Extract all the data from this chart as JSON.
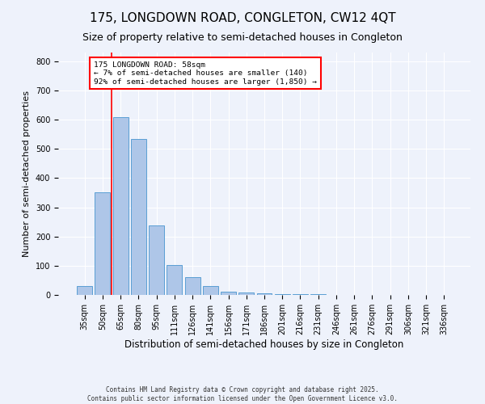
{
  "title1": "175, LONGDOWN ROAD, CONGLETON, CW12 4QT",
  "title2": "Size of property relative to semi-detached houses in Congleton",
  "xlabel": "Distribution of semi-detached houses by size in Congleton",
  "ylabel": "Number of semi-detached properties",
  "categories": [
    "35sqm",
    "50sqm",
    "65sqm",
    "80sqm",
    "95sqm",
    "111sqm",
    "126sqm",
    "141sqm",
    "156sqm",
    "171sqm",
    "186sqm",
    "201sqm",
    "216sqm",
    "231sqm",
    "246sqm",
    "261sqm",
    "276sqm",
    "291sqm",
    "306sqm",
    "321sqm",
    "336sqm"
  ],
  "values": [
    30,
    350,
    608,
    535,
    237,
    101,
    60,
    30,
    10,
    8,
    5,
    3,
    2,
    2,
    1,
    1,
    1,
    1,
    1,
    1,
    1
  ],
  "bar_color": "#aec6e8",
  "bar_edge_color": "#5a9fd4",
  "marker_color": "red",
  "annotation_title": "175 LONGDOWN ROAD: 58sqm",
  "annotation_line1": "← 7% of semi-detached houses are smaller (140)",
  "annotation_line2": "92% of semi-detached houses are larger (1,850) →",
  "annotation_box_color": "white",
  "annotation_box_edge": "red",
  "ylim": [
    0,
    830
  ],
  "yticks": [
    0,
    100,
    200,
    300,
    400,
    500,
    600,
    700,
    800
  ],
  "footer1": "Contains HM Land Registry data © Crown copyright and database right 2025.",
  "footer2": "Contains public sector information licensed under the Open Government Licence v3.0.",
  "bg_color": "#eef2fb",
  "title1_fontsize": 11,
  "title2_fontsize": 9,
  "ylabel_fontsize": 8,
  "xlabel_fontsize": 8.5,
  "tick_fontsize": 7,
  "footer_fontsize": 5.5
}
